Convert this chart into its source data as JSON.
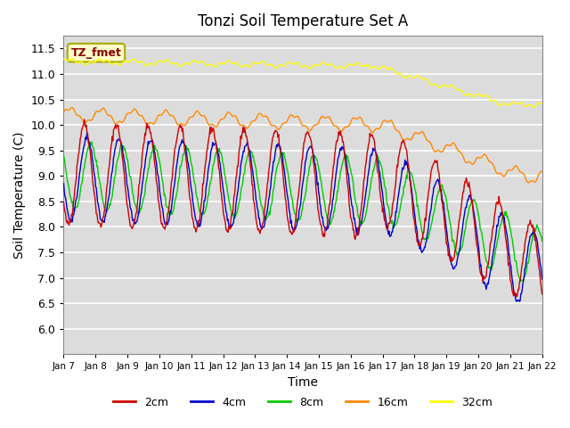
{
  "title": "Tonzi Soil Temperature Set A",
  "xlabel": "Time",
  "ylabel": "Soil Temperature (C)",
  "ylim": [
    5.5,
    11.75
  ],
  "yticks": [
    6.0,
    6.5,
    7.0,
    7.5,
    8.0,
    8.5,
    9.0,
    9.5,
    10.0,
    10.5,
    11.0,
    11.5
  ],
  "colors": {
    "2cm": "#cc0000",
    "4cm": "#0000cc",
    "8cm": "#00cc00",
    "16cm": "#ff8800",
    "32cm": "#ffff00"
  },
  "legend_label": "TZ_fmet",
  "legend_box_bg": "#ffffcc",
  "legend_box_edge": "#cccc00",
  "plot_bg": "#dcdcdc",
  "n_points": 720,
  "days": [
    "Jan 7",
    "Jan 8",
    "Jan 9",
    "Jan 10",
    "Jan 11",
    "Jan 12",
    "Jan 13",
    "Jan 14",
    "Jan 15",
    "Jan 16",
    "Jan 17",
    "Jan 18",
    "Jan 19",
    "Jan 20",
    "Jan 21",
    "Jan 22"
  ]
}
